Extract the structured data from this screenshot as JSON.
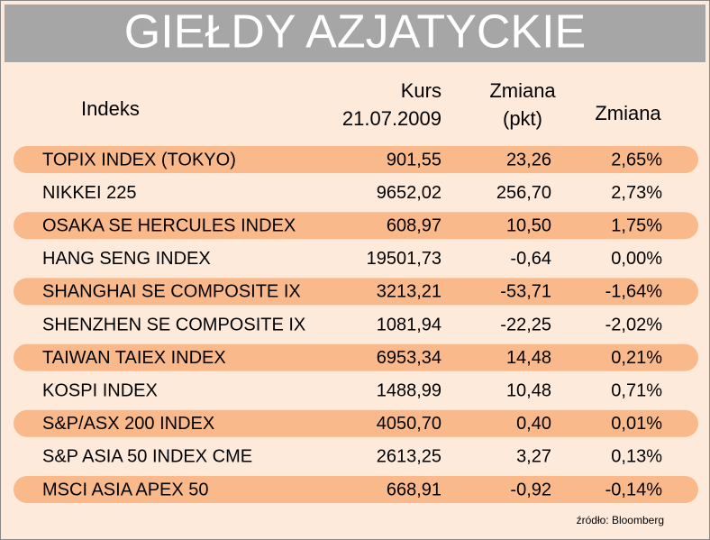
{
  "header": {
    "title": "GIEŁDY AZJATYCKIE"
  },
  "table": {
    "columns": [
      [
        "Indeks"
      ],
      [
        "Kurs",
        "21.07.2009"
      ],
      [
        "Zmiana",
        "(pkt)"
      ],
      [
        "Zmiana"
      ]
    ],
    "rows": [
      [
        "TOPIX INDEX (TOKYO)",
        "901,55",
        "23,26",
        "2,65%"
      ],
      [
        "NIKKEI 225",
        "9652,02",
        "256,70",
        "2,73%"
      ],
      [
        "OSAKA SE HERCULES INDEX",
        "608,97",
        "10,50",
        "1,75%"
      ],
      [
        "HANG SENG INDEX",
        "19501,73",
        "-0,64",
        "0,00%"
      ],
      [
        "SHANGHAI SE COMPOSITE IX",
        "3213,21",
        "-53,71",
        "-1,64%"
      ],
      [
        "SHENZHEN SE COMPOSITE IX",
        "1081,94",
        "-22,25",
        "-2,02%"
      ],
      [
        "TAIWAN TAIEX INDEX",
        "6953,34",
        "14,48",
        "0,21%"
      ],
      [
        "KOSPI INDEX",
        "1488,99",
        "10,48",
        "0,71%"
      ],
      [
        "S&P/ASX 200 INDEX",
        "4050,70",
        "0,40",
        "0,01%"
      ],
      [
        "S&P ASIA 50 INDEX CME",
        "2613,25",
        "3,27",
        "0,13%"
      ],
      [
        "MSCI ASIA APEX 50",
        "668,91",
        "-0,92",
        "-0,14%"
      ]
    ]
  },
  "source": "źródło: Bloomberg"
}
